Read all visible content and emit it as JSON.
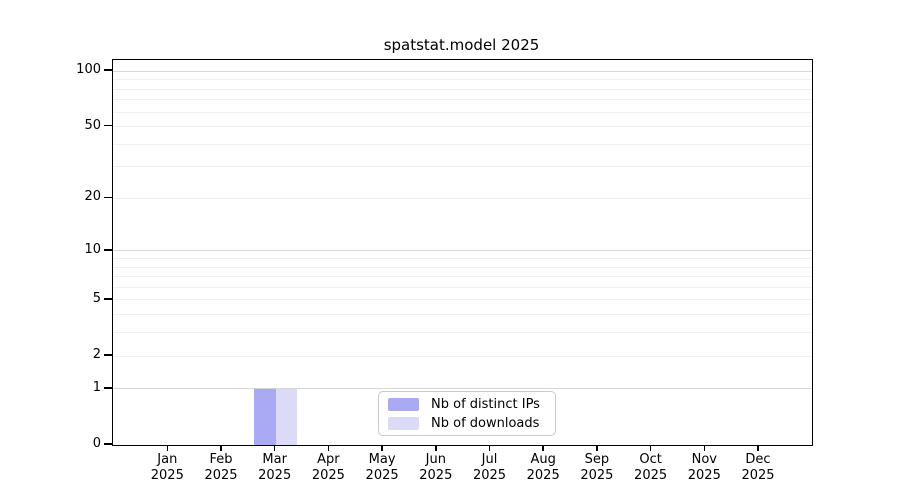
{
  "title": "spatstat.model 2025",
  "chart_data": {
    "type": "bar",
    "title": "spatstat.model 2025",
    "categories": [
      "Jan",
      "Feb",
      "Mar",
      "Apr",
      "May",
      "Jun",
      "Jul",
      "Aug",
      "Sep",
      "Oct",
      "Nov",
      "Dec"
    ],
    "x_year_label": "2025",
    "series": [
      {
        "name": "Nb of distinct IPs",
        "color": "#a9a9f4",
        "values": [
          0,
          0,
          1,
          0,
          0,
          0,
          0,
          0,
          0,
          0,
          0,
          0
        ]
      },
      {
        "name": "Nb of downloads",
        "color": "#dbdbf8",
        "values": [
          0,
          0,
          1,
          0,
          0,
          0,
          0,
          0,
          0,
          0,
          0,
          0
        ]
      }
    ],
    "y_scale": "log1p",
    "ylim": [
      0,
      115
    ],
    "y_ticks": [
      0,
      1,
      2,
      5,
      10,
      20,
      50,
      100
    ],
    "major_gridlines": [
      1,
      10,
      100
    ],
    "minor_gridlines": [
      2,
      3,
      4,
      5,
      6,
      7,
      8,
      9,
      20,
      30,
      40,
      50,
      60,
      70,
      80,
      90
    ],
    "grid": "horizontal-only",
    "legend_position": "bottom-center",
    "colors": {
      "major_grid": "#d6d6d6",
      "minor_grid": "#f0f0f0",
      "axis": "#000000",
      "legend_border": "#c9c9c9",
      "background": "#ffffff"
    }
  }
}
